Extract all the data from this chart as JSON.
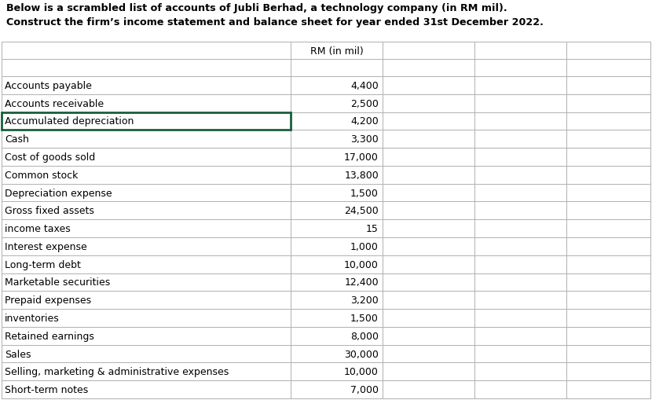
{
  "title_line1": "Below is a scrambled list of accounts of Jubli Berhad, a technology company (in RM mil).",
  "title_line2": "Construct the firm’s income statement and balance sheet for year ended 31st December 2022.",
  "col_header": "RM (in mil)",
  "accounts": [
    "Accounts payable",
    "Accounts receivable",
    "Accumulated depreciation",
    "Cash",
    "Cost of goods sold",
    "Common stock",
    "Depreciation expense",
    "Gross fixed assets",
    "income taxes",
    "Interest expense",
    "Long-term debt",
    "Marketable securities",
    "Prepaid expenses",
    "inventories",
    "Retained earnings",
    "Sales",
    "Selling, marketing & administrative expenses",
    "Short-term notes"
  ],
  "values": [
    "4,400",
    "2,500",
    "4,200",
    "3,300",
    "17,000",
    "13,800",
    "1,500",
    "24,500",
    "15",
    "1,000",
    "10,000",
    "12,400",
    "3,200",
    "1,500",
    "8,000",
    "30,000",
    "10,000",
    "7,000"
  ],
  "highlighted_row": 2,
  "highlight_border_color": "#1a5e3a",
  "grid_color": "#b0b0b0",
  "text_color": "#000000",
  "bg_color": "#ffffff",
  "title_fontsize": 9.2,
  "header_fontsize": 9.0,
  "data_fontsize": 9.0
}
